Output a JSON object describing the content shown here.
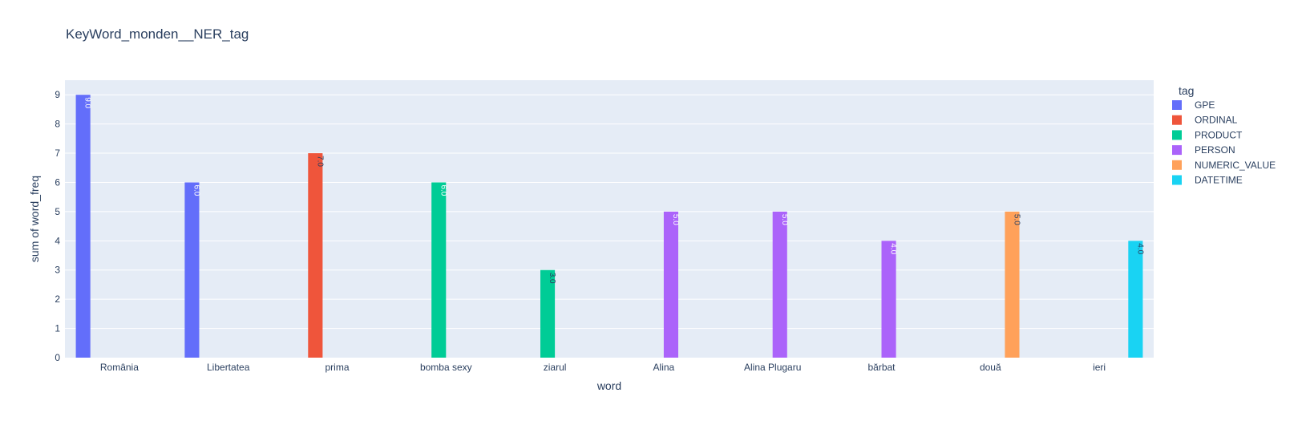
{
  "chart_data": {
    "type": "bar",
    "title": "KeyWord_monden__NER_tag",
    "xlabel": "word",
    "ylabel": "sum of word_freq",
    "ylim": [
      0,
      9.5
    ],
    "yticks": [
      0,
      1,
      2,
      3,
      4,
      5,
      6,
      7,
      8,
      9
    ],
    "grid": true,
    "legend_title": "tag",
    "legend_position": "right",
    "categories": [
      "România",
      "Libertatea",
      "prima",
      "bomba sexy",
      "ziarul",
      "Alina",
      "Alina Plugaru",
      "bărbat",
      "două",
      "ieri"
    ],
    "series": [
      {
        "name": "GPE",
        "color": "#636efa",
        "values": [
          9,
          6,
          null,
          null,
          null,
          null,
          null,
          null,
          null,
          null
        ],
        "labels": [
          "9.0",
          "6.0"
        ]
      },
      {
        "name": "ORDINAL",
        "color": "#ef553b",
        "values": [
          null,
          null,
          7,
          null,
          null,
          null,
          null,
          null,
          null,
          null
        ],
        "labels": [
          "7.0"
        ]
      },
      {
        "name": "PRODUCT",
        "color": "#00cc96",
        "values": [
          null,
          null,
          null,
          6,
          3,
          null,
          null,
          null,
          null,
          null
        ],
        "labels": [
          "6.0",
          "3.0"
        ]
      },
      {
        "name": "PERSON",
        "color": "#ab63fa",
        "values": [
          null,
          null,
          null,
          null,
          null,
          5,
          5,
          4,
          null,
          null
        ],
        "labels": [
          "5.0",
          "5.0",
          "4.0"
        ]
      },
      {
        "name": "NUMERIC_VALUE",
        "color": "#ffa15a",
        "values": [
          null,
          null,
          null,
          null,
          null,
          null,
          null,
          null,
          5,
          null
        ],
        "labels": [
          "5.0"
        ]
      },
      {
        "name": "DATETIME",
        "color": "#19d3f3",
        "values": [
          null,
          null,
          null,
          null,
          null,
          null,
          null,
          null,
          null,
          4
        ],
        "labels": [
          "4.0"
        ]
      }
    ]
  }
}
